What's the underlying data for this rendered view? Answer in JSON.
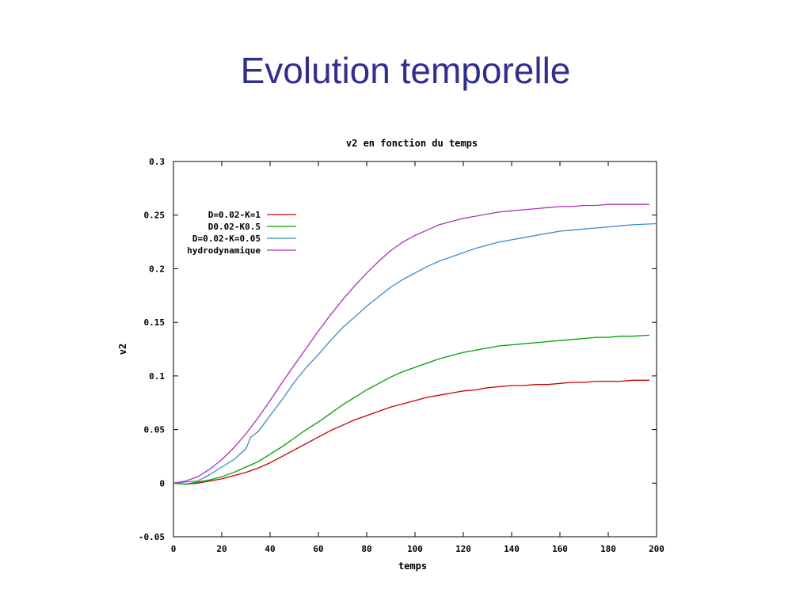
{
  "slide": {
    "title": "Evolution temporelle"
  },
  "chart_data": {
    "type": "line",
    "title": "v2 en fonction du temps",
    "xlabel": "temps",
    "ylabel": "v2",
    "xlim": [
      0,
      200
    ],
    "ylim": [
      -0.05,
      0.3
    ],
    "x_ticks": [
      0,
      20,
      40,
      60,
      80,
      100,
      120,
      140,
      160,
      180,
      200
    ],
    "y_ticks": [
      -0.05,
      0,
      0.05,
      0.1,
      0.15,
      0.2,
      0.25,
      0.3
    ],
    "y_tick_labels": [
      "-0.05",
      "0",
      "0.05",
      "0.1",
      "0.15",
      "0.2",
      "0.25",
      "0.3"
    ],
    "grid": false,
    "legend_position": "top-left",
    "series": [
      {
        "name": "D=0.02-K=1",
        "color": "#cc0000",
        "x": [
          0,
          5,
          10,
          15,
          20,
          25,
          30,
          35,
          40,
          45,
          50,
          55,
          60,
          65,
          70,
          75,
          80,
          85,
          90,
          95,
          100,
          105,
          110,
          115,
          120,
          125,
          130,
          135,
          140,
          145,
          150,
          155,
          160,
          165,
          170,
          175,
          180,
          185,
          190,
          197
        ],
        "y": [
          0,
          -0.001,
          0,
          0.002,
          0.004,
          0.007,
          0.01,
          0.014,
          0.019,
          0.025,
          0.031,
          0.037,
          0.043,
          0.049,
          0.054,
          0.059,
          0.063,
          0.067,
          0.071,
          0.074,
          0.077,
          0.08,
          0.082,
          0.084,
          0.086,
          0.087,
          0.089,
          0.09,
          0.091,
          0.091,
          0.092,
          0.092,
          0.093,
          0.094,
          0.094,
          0.095,
          0.095,
          0.095,
          0.096,
          0.096
        ]
      },
      {
        "name": "D0.02-K0.5",
        "color": "#00a000",
        "x": [
          0,
          5,
          10,
          15,
          20,
          25,
          30,
          35,
          40,
          45,
          50,
          55,
          60,
          65,
          70,
          75,
          80,
          85,
          90,
          95,
          100,
          105,
          110,
          115,
          120,
          125,
          130,
          135,
          140,
          145,
          150,
          155,
          160,
          165,
          170,
          175,
          180,
          185,
          190,
          197
        ],
        "y": [
          0,
          -0.001,
          0.001,
          0.003,
          0.006,
          0.01,
          0.015,
          0.02,
          0.027,
          0.034,
          0.042,
          0.05,
          0.057,
          0.065,
          0.073,
          0.08,
          0.087,
          0.093,
          0.099,
          0.104,
          0.108,
          0.112,
          0.116,
          0.119,
          0.122,
          0.124,
          0.126,
          0.128,
          0.129,
          0.13,
          0.131,
          0.132,
          0.133,
          0.134,
          0.135,
          0.136,
          0.136,
          0.137,
          0.137,
          0.138
        ]
      },
      {
        "name": "D=0.02-K=0.05",
        "color": "#3a8ad0",
        "x": [
          0,
          5,
          10,
          15,
          20,
          25,
          30,
          32,
          35,
          40,
          45,
          50,
          55,
          60,
          65,
          70,
          75,
          80,
          85,
          90,
          95,
          100,
          105,
          110,
          115,
          120,
          125,
          130,
          135,
          140,
          145,
          150,
          155,
          160,
          165,
          170,
          175,
          180,
          185,
          190,
          200
        ],
        "y": [
          0,
          0.001,
          0.002,
          0.008,
          0.015,
          0.022,
          0.032,
          0.043,
          0.048,
          0.063,
          0.078,
          0.094,
          0.108,
          0.12,
          0.133,
          0.145,
          0.155,
          0.165,
          0.174,
          0.183,
          0.19,
          0.196,
          0.202,
          0.207,
          0.211,
          0.215,
          0.219,
          0.222,
          0.225,
          0.227,
          0.229,
          0.231,
          0.233,
          0.235,
          0.236,
          0.237,
          0.238,
          0.239,
          0.24,
          0.241,
          0.242
        ]
      },
      {
        "name": "hydrodynamique",
        "color": "#b030c0",
        "x": [
          0,
          5,
          10,
          15,
          20,
          25,
          30,
          35,
          40,
          45,
          50,
          55,
          60,
          65,
          70,
          75,
          80,
          85,
          90,
          95,
          100,
          105,
          110,
          115,
          120,
          125,
          130,
          135,
          140,
          145,
          150,
          155,
          160,
          165,
          170,
          175,
          180,
          185,
          190,
          197
        ],
        "y": [
          0,
          0.002,
          0.006,
          0.013,
          0.022,
          0.033,
          0.046,
          0.061,
          0.077,
          0.094,
          0.11,
          0.126,
          0.142,
          0.157,
          0.171,
          0.184,
          0.196,
          0.207,
          0.217,
          0.225,
          0.231,
          0.236,
          0.241,
          0.244,
          0.247,
          0.249,
          0.251,
          0.253,
          0.254,
          0.255,
          0.256,
          0.257,
          0.258,
          0.258,
          0.259,
          0.259,
          0.26,
          0.26,
          0.26,
          0.26
        ]
      }
    ]
  }
}
